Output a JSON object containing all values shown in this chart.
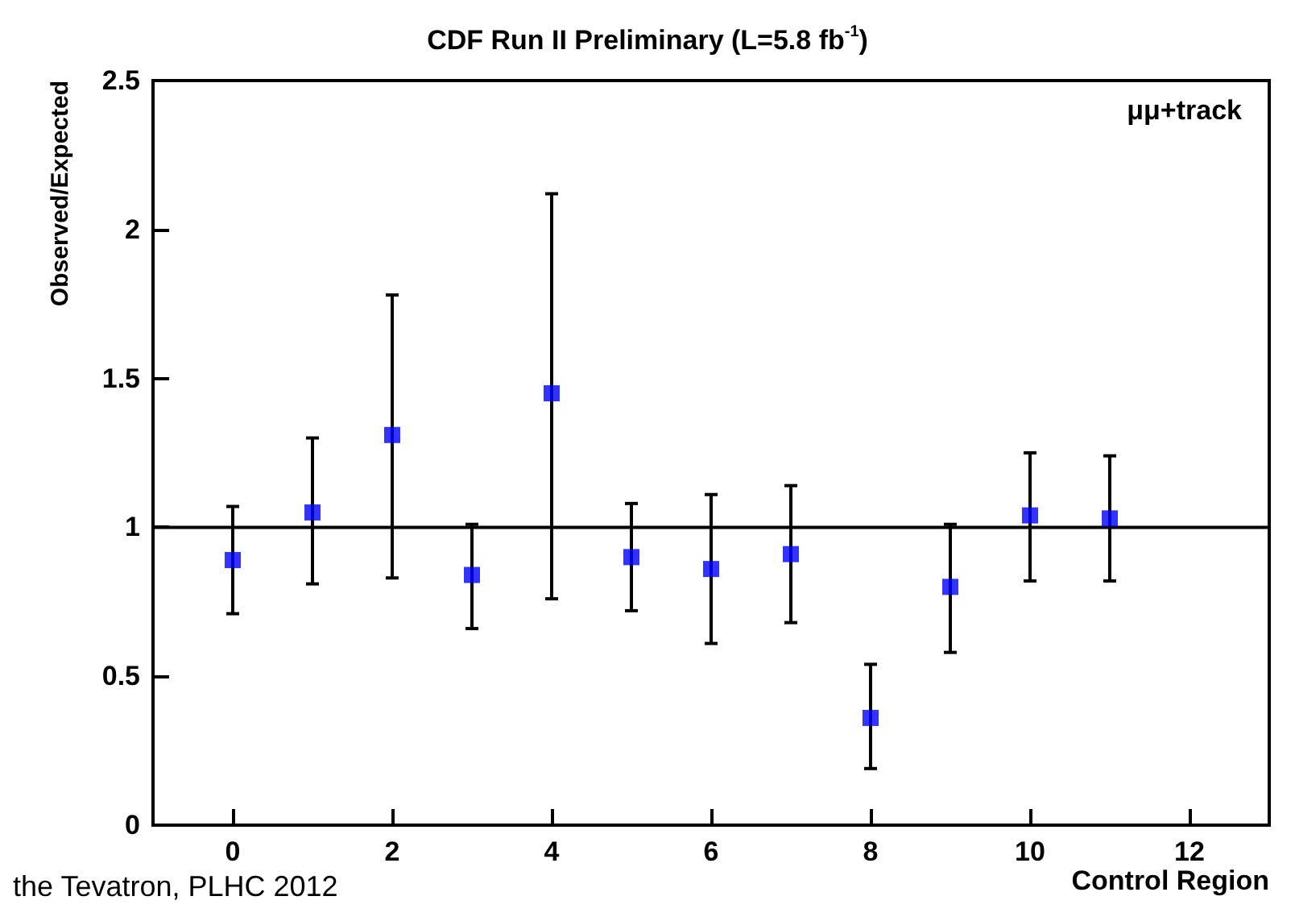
{
  "chart_data": {
    "type": "scatter",
    "title": "CDF Run II Preliminary (L=5.8 fb$^{-1}$)",
    "xlabel": "Control Region",
    "ylabel": "Observed/Expected",
    "annotations": [
      "μμ+track",
      "the Tevatron, PLHC 2012"
    ],
    "x": [
      0,
      1,
      2,
      3,
      4,
      5,
      6,
      7,
      8,
      9,
      10,
      11
    ],
    "series": [
      {
        "color": "#0000ff",
        "values": [
          0.89,
          1.05,
          1.31,
          0.84,
          1.45,
          0.9,
          0.86,
          0.91,
          0.36,
          0.8,
          1.04,
          1.03
        ],
        "errors": [
          [
            0.71,
            1.07
          ],
          [
            0.81,
            1.3
          ],
          [
            0.83,
            1.78
          ],
          [
            0.66,
            1.01
          ],
          [
            0.76,
            2.12
          ],
          [
            0.72,
            1.08
          ],
          [
            0.61,
            1.11
          ],
          [
            0.68,
            1.14
          ],
          [
            0.19,
            0.54
          ],
          [
            0.58,
            1.01
          ],
          [
            0.82,
            1.25
          ],
          [
            0.82,
            1.24
          ]
        ]
      }
    ],
    "xlim": [
      -1,
      13
    ],
    "xticks": [
      0,
      2,
      4,
      6,
      8,
      10,
      12
    ],
    "ylim": [
      0,
      2.5
    ],
    "yticks": [
      0,
      0.5,
      1,
      1.5,
      2,
      2.5
    ],
    "marker": "square",
    "ref_lines": [
      {
        "axis": "y",
        "value": 1,
        "color": "#000000"
      }
    ]
  }
}
